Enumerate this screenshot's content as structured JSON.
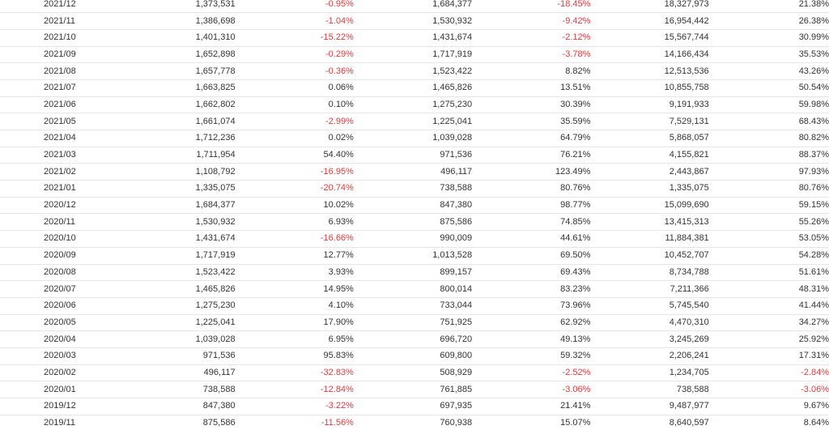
{
  "colors": {
    "text": "#333333",
    "negative": "#e4393c",
    "row_border": "#e6e6e6"
  },
  "rows": [
    [
      "2021/12",
      "1,373,531",
      "-0.95%",
      "1,684,377",
      "-18.45%",
      "18,327,973",
      "21.38%"
    ],
    [
      "2021/11",
      "1,386,698",
      "-1.04%",
      "1,530,932",
      "-9.42%",
      "16,954,442",
      "26.38%"
    ],
    [
      "2021/10",
      "1,401,310",
      "-15.22%",
      "1,431,674",
      "-2.12%",
      "15,567,744",
      "30.99%"
    ],
    [
      "2021/09",
      "1,652,898",
      "-0.29%",
      "1,717,919",
      "-3.78%",
      "14,166,434",
      "35.53%"
    ],
    [
      "2021/08",
      "1,657,778",
      "-0.36%",
      "1,523,422",
      "8.82%",
      "12,513,536",
      "43.26%"
    ],
    [
      "2021/07",
      "1,663,825",
      "0.06%",
      "1,465,826",
      "13.51%",
      "10,855,758",
      "50.54%"
    ],
    [
      "2021/06",
      "1,662,802",
      "0.10%",
      "1,275,230",
      "30.39%",
      "9,191,933",
      "59.98%"
    ],
    [
      "2021/05",
      "1,661,074",
      "-2.99%",
      "1,225,041",
      "35.59%",
      "7,529,131",
      "68.43%"
    ],
    [
      "2021/04",
      "1,712,236",
      "0.02%",
      "1,039,028",
      "64.79%",
      "5,868,057",
      "80.82%"
    ],
    [
      "2021/03",
      "1,711,954",
      "54.40%",
      "971,536",
      "76.21%",
      "4,155,821",
      "88.37%"
    ],
    [
      "2021/02",
      "1,108,792",
      "-16.95%",
      "496,117",
      "123.49%",
      "2,443,867",
      "97.93%"
    ],
    [
      "2021/01",
      "1,335,075",
      "-20.74%",
      "738,588",
      "80.76%",
      "1,335,075",
      "80.76%"
    ],
    [
      "2020/12",
      "1,684,377",
      "10.02%",
      "847,380",
      "98.77%",
      "15,099,690",
      "59.15%"
    ],
    [
      "2020/11",
      "1,530,932",
      "6.93%",
      "875,586",
      "74.85%",
      "13,415,313",
      "55.26%"
    ],
    [
      "2020/10",
      "1,431,674",
      "-16.66%",
      "990,009",
      "44.61%",
      "11,884,381",
      "53.05%"
    ],
    [
      "2020/09",
      "1,717,919",
      "12.77%",
      "1,013,528",
      "69.50%",
      "10,452,707",
      "54.28%"
    ],
    [
      "2020/08",
      "1,523,422",
      "3.93%",
      "899,157",
      "69.43%",
      "8,734,788",
      "51.61%"
    ],
    [
      "2020/07",
      "1,465,826",
      "14.95%",
      "800,014",
      "83.23%",
      "7,211,366",
      "48.31%"
    ],
    [
      "2020/06",
      "1,275,230",
      "4.10%",
      "733,044",
      "73.96%",
      "5,745,540",
      "41.44%"
    ],
    [
      "2020/05",
      "1,225,041",
      "17.90%",
      "751,925",
      "62.92%",
      "4,470,310",
      "34.27%"
    ],
    [
      "2020/04",
      "1,039,028",
      "6.95%",
      "696,720",
      "49.13%",
      "3,245,269",
      "25.92%"
    ],
    [
      "2020/03",
      "971,536",
      "95.83%",
      "609,800",
      "59.32%",
      "2,206,241",
      "17.31%"
    ],
    [
      "2020/02",
      "496,117",
      "-32.83%",
      "508,929",
      "-2.52%",
      "1,234,705",
      "-2.84%"
    ],
    [
      "2020/01",
      "738,588",
      "-12.84%",
      "761,885",
      "-3.06%",
      "738,588",
      "-3.06%"
    ],
    [
      "2019/12",
      "847,380",
      "-3.22%",
      "697,935",
      "21.41%",
      "9,487,977",
      "9.67%"
    ],
    [
      "2019/11",
      "875,586",
      "-11.56%",
      "760,938",
      "15.07%",
      "8,640,597",
      "8.64%"
    ]
  ]
}
